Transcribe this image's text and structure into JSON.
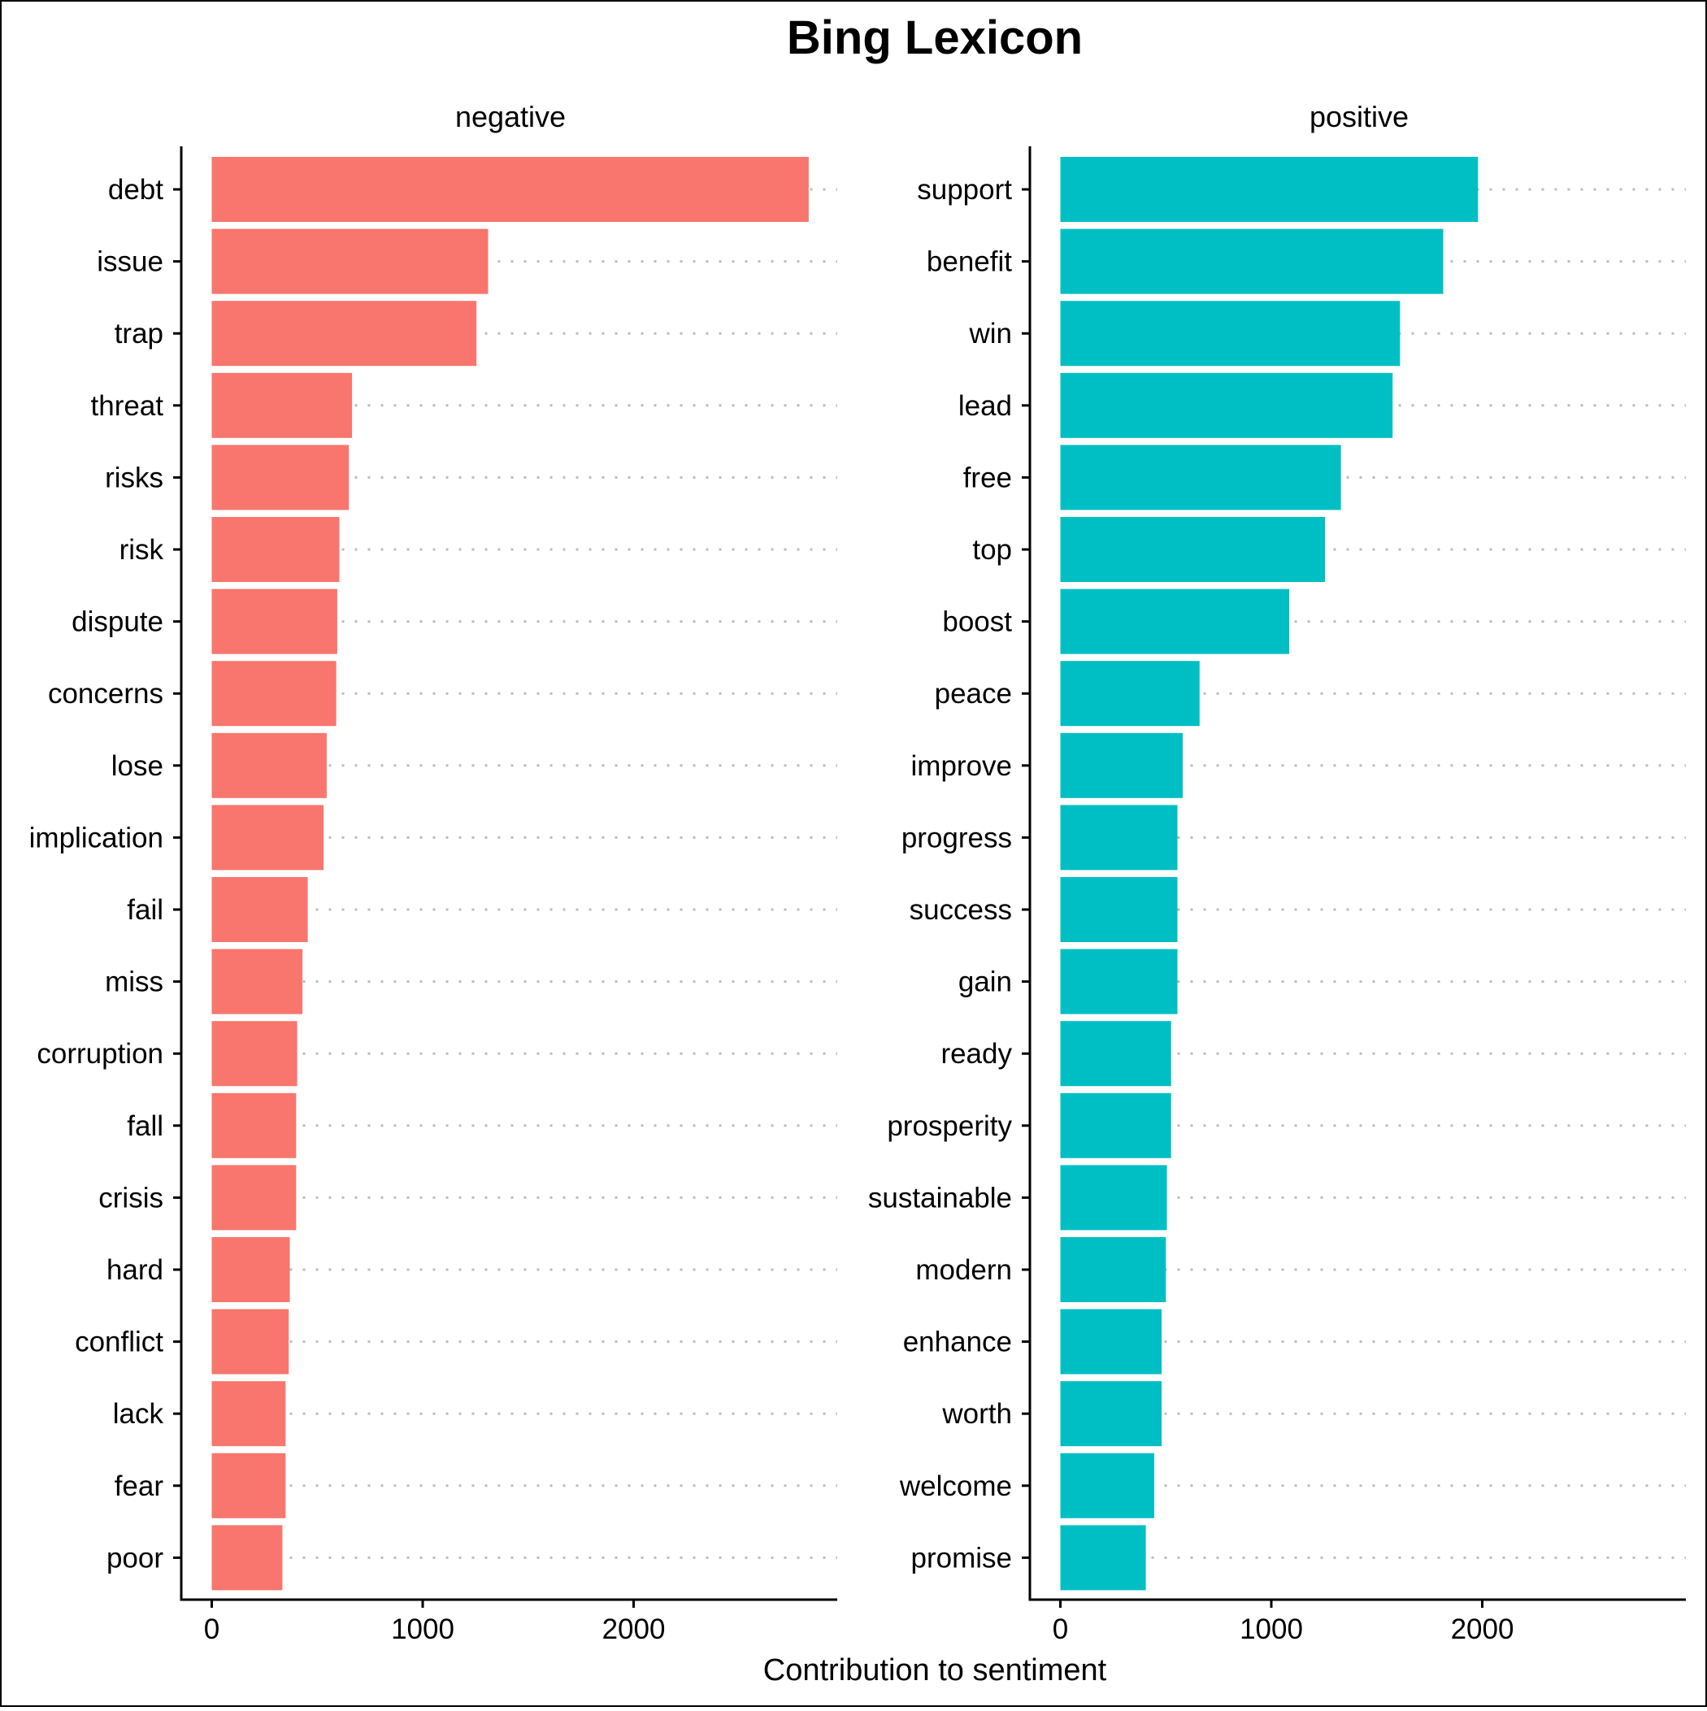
{
  "chart_data": {
    "type": "bar",
    "orientation": "horizontal",
    "title": "Bing Lexicon",
    "xlabel": "Contribution to sentiment",
    "ylabel": "",
    "xlim": [
      0,
      2950
    ],
    "xticks": [
      0,
      1000,
      2000
    ],
    "grid": "dotted horizontal guide lines",
    "legend": "none",
    "panels": [
      {
        "name": "negative",
        "color": "#F8766D",
        "categories": [
          "debt",
          "issue",
          "trap",
          "threat",
          "risks",
          "risk",
          "dispute",
          "concerns",
          "lose",
          "implication",
          "fail",
          "miss",
          "corruption",
          "fall",
          "crisis",
          "hard",
          "conflict",
          "lack",
          "fear",
          "poor"
        ],
        "values": [
          2830,
          1310,
          1255,
          665,
          650,
          605,
          595,
          590,
          545,
          530,
          455,
          430,
          405,
          400,
          400,
          370,
          365,
          350,
          350,
          335
        ]
      },
      {
        "name": "positive",
        "color": "#00BFC4",
        "categories": [
          "support",
          "benefit",
          "win",
          "lead",
          "free",
          "top",
          "boost",
          "peace",
          "improve",
          "progress",
          "success",
          "gain",
          "ready",
          "prosperity",
          "sustainable",
          "modern",
          "enhance",
          "worth",
          "welcome",
          "promise"
        ],
        "values": [
          1980,
          1815,
          1610,
          1575,
          1330,
          1255,
          1085,
          660,
          580,
          555,
          555,
          555,
          525,
          525,
          505,
          500,
          480,
          480,
          445,
          405
        ]
      }
    ]
  }
}
